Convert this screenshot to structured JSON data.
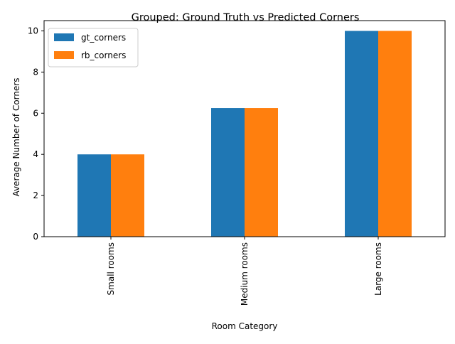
{
  "chart_data": {
    "type": "bar",
    "title": "Grouped: Ground Truth vs Predicted Corners",
    "xlabel": "Room Category",
    "ylabel": "Average Number of Corners",
    "categories": [
      "Small rooms",
      "Medium rooms",
      "Large rooms"
    ],
    "series": [
      {
        "name": "gt_corners",
        "color": "#1f77b4",
        "values": [
          4.0,
          6.25,
          10.0
        ]
      },
      {
        "name": "rb_corners",
        "color": "#ff7f0e",
        "values": [
          4.0,
          6.25,
          10.0
        ]
      }
    ],
    "ylim": [
      0,
      10.5
    ],
    "yticks": [
      0,
      2,
      4,
      6,
      8,
      10
    ],
    "grid": false,
    "legend_position": "top-left"
  }
}
